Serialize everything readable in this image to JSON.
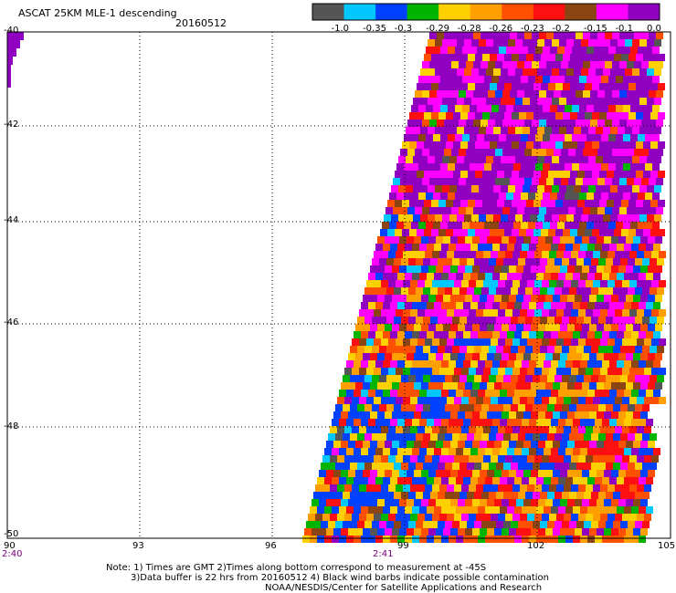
{
  "header": {
    "title": "ASCAT 25KM MLE-1 descending",
    "date": "20160512"
  },
  "legend": {
    "labels": [
      "-1.0",
      "-0.35",
      "-0.3",
      "-0.29",
      "-0.28",
      "-0.26",
      "-0.23",
      "-0.2",
      "-0.15",
      "-0.1",
      "0.0"
    ],
    "colors": [
      "#555555",
      "#00c8ff",
      "#0040ff",
      "#00b400",
      "#ffd000",
      "#ffa000",
      "#ff5000",
      "#ff1010",
      "#8b4513",
      "#ff00ff",
      "#9000c0"
    ]
  },
  "axes": {
    "lat_labels": [
      "-40",
      "-42",
      "-44",
      "-46",
      "-48",
      "-50"
    ],
    "lon_labels": [
      "90",
      "93",
      "96",
      "99",
      "102",
      "105"
    ],
    "time_labels": [
      "2:40",
      "2:41"
    ]
  },
  "notes": {
    "line1": "Note: 1) Times are GMT 2)Times along bottom correspond to measurement at -45S",
    "line2": "3)Data buffer is 22 hrs from 20160512 4) Black wind barbs indicate possible contamination",
    "line3": "NOAA/NESDIS/Center for Satellite Applications and Research"
  }
}
